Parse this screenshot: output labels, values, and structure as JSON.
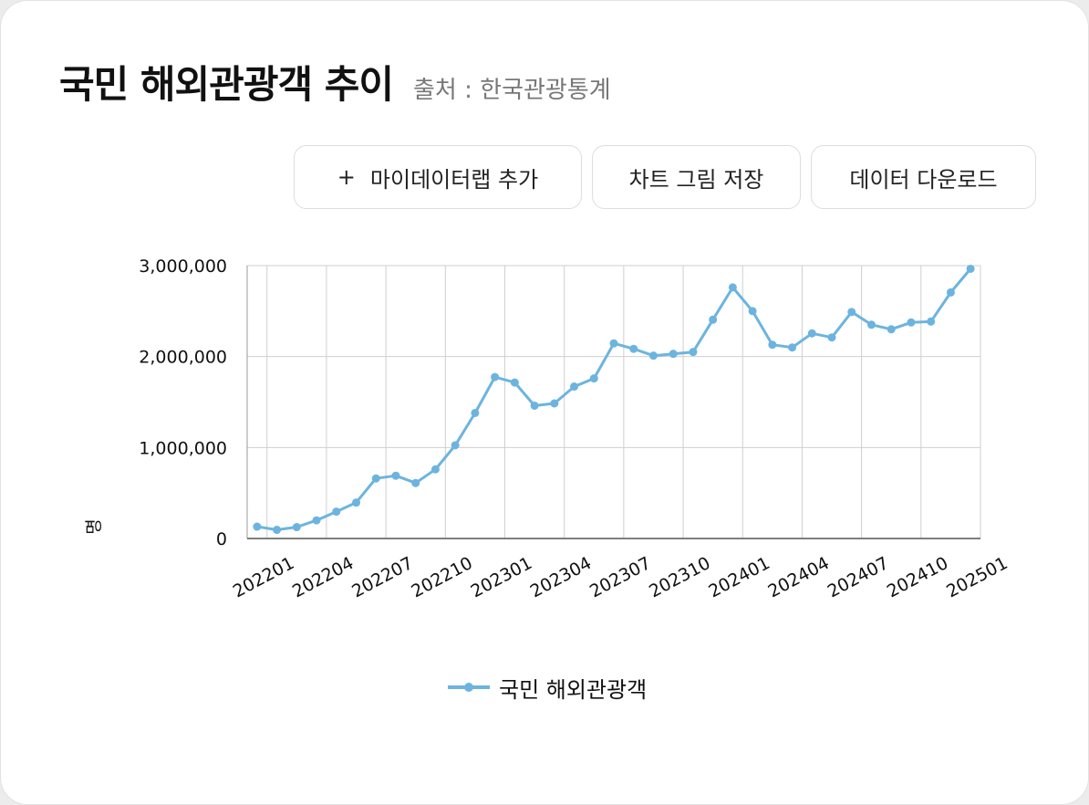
{
  "header": {
    "title": "국민 해외관광객 추이",
    "source": "출처 : 한국관광통계"
  },
  "toolbar": {
    "add_label": "마이데이터랩 추가",
    "add_icon": "plus-icon",
    "save_label": "차트 그림 저장",
    "download_label": "데이터 다운로드"
  },
  "chart_data": {
    "type": "line",
    "ylabel": "명",
    "ylim": [
      0,
      3000000
    ],
    "yticks": [
      "0",
      "1,000,000",
      "2,000,000",
      "3,000,000"
    ],
    "xtick_labels": [
      "202201",
      "202204",
      "202207",
      "202210",
      "202301",
      "202304",
      "202307",
      "202310",
      "202401",
      "202404",
      "202407",
      "202410",
      "202501"
    ],
    "grid": true,
    "legend_position": "bottom",
    "color": "#6cb4df",
    "series": [
      {
        "name": "국민 해외관광객",
        "x": [
          "202201",
          "202202",
          "202203",
          "202204",
          "202205",
          "202206",
          "202207",
          "202208",
          "202209",
          "202210",
          "202211",
          "202212",
          "202301",
          "202302",
          "202303",
          "202304",
          "202305",
          "202306",
          "202307",
          "202308",
          "202309",
          "202310",
          "202311",
          "202312",
          "202401",
          "202402",
          "202403",
          "202404",
          "202405",
          "202406",
          "202407",
          "202408",
          "202409",
          "202410",
          "202411",
          "202412",
          "202501"
        ],
        "values": [
          130000,
          95000,
          125000,
          200000,
          295000,
          395000,
          660000,
          690000,
          610000,
          760000,
          1025000,
          1380000,
          1775000,
          1715000,
          1460000,
          1485000,
          1670000,
          1760000,
          2145000,
          2085000,
          2010000,
          2030000,
          2050000,
          2405000,
          2760000,
          2500000,
          2130000,
          2100000,
          2255000,
          2210000,
          2490000,
          2350000,
          2300000,
          2375000,
          2385000,
          2705000,
          2965000
        ]
      }
    ]
  }
}
